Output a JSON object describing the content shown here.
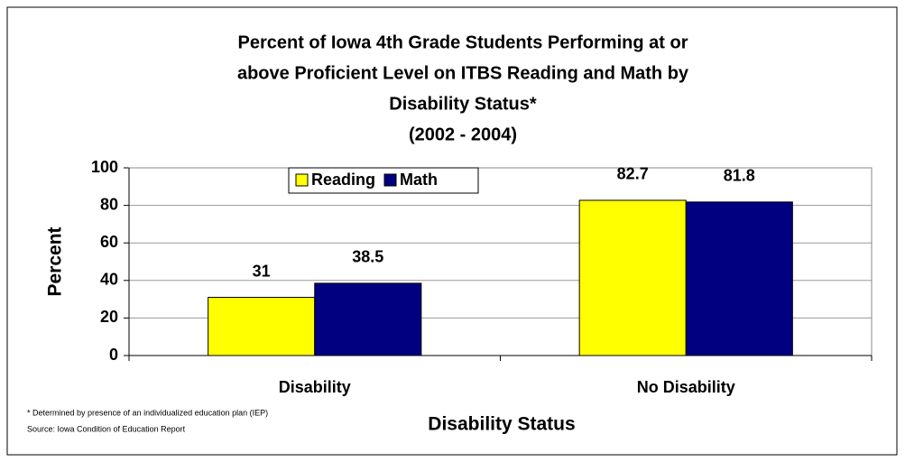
{
  "chart_data": {
    "type": "bar",
    "title": [
      "Percent of Iowa 4th Grade Students Performing at or",
      "above Proficient Level on ITBS Reading and Math by",
      "Disability Status*",
      "(2002 - 2004)"
    ],
    "x_label": "Disability Status",
    "y_label": "Percent",
    "categories": [
      "Disability",
      "No Disability"
    ],
    "series": [
      {
        "name": "Reading",
        "color": "#ffff00",
        "values": [
          31,
          82.7
        ]
      },
      {
        "name": "Math",
        "color": "#000080",
        "values": [
          38.5,
          81.8
        ]
      }
    ],
    "ylim": [
      0,
      100
    ],
    "yticks": [
      0,
      20,
      40,
      60,
      80,
      100
    ],
    "grid": true,
    "legend": "top",
    "footnotes": [
      "* Determined by presence of an individualized education plan (IEP)",
      "Source: Iowa Condition of Education Report"
    ]
  }
}
